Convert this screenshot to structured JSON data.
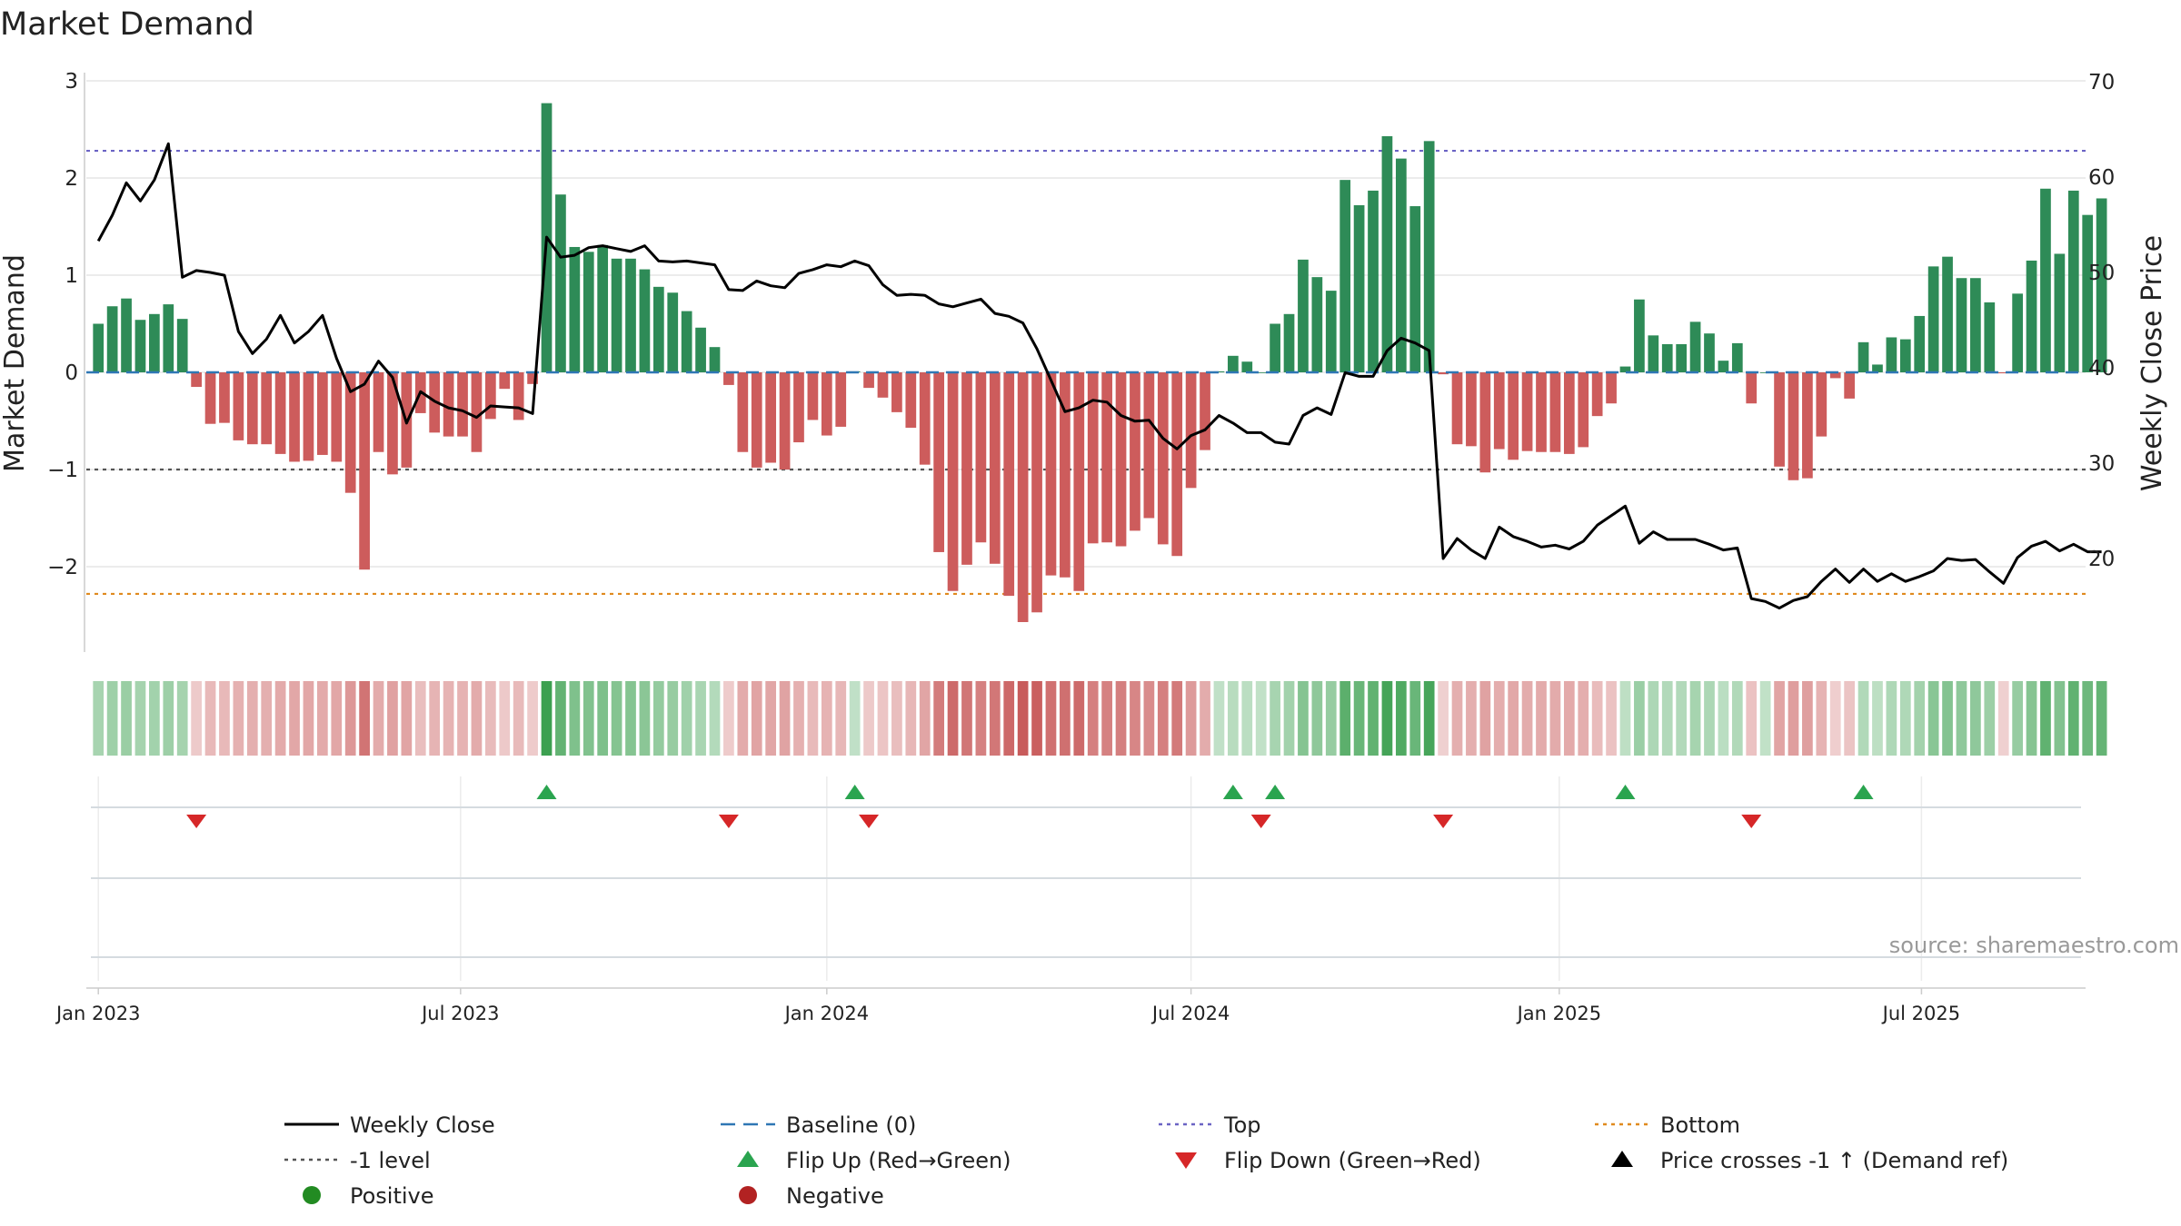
{
  "chart_data": {
    "type": "bar+line",
    "title": "Market Demand",
    "ylabel_left": "Market Demand",
    "ylabel_right": "Weekly Close Price",
    "source": "source: sharemaestro.com",
    "ylim_left": [
      -3,
      3
    ],
    "ylim_right": [
      10,
      70
    ],
    "yticks_left": [
      3,
      2,
      1,
      0,
      -1,
      -2
    ],
    "yticks_left_labels": [
      "3",
      "2",
      "1",
      "0",
      "−1",
      "−2"
    ],
    "yticks_right": [
      70,
      60,
      50,
      40,
      30,
      20
    ],
    "yticks_right_labels": [
      "70",
      "60",
      "50",
      "40",
      "30",
      "20"
    ],
    "x_start": "2023-01-02",
    "x_range_days": [
      -6,
      993
    ],
    "xticks": [
      {
        "day": 0,
        "label": "Jan 2023"
      },
      {
        "day": 181,
        "label": "Jul 2023"
      },
      {
        "day": 364,
        "label": "Jan 2024"
      },
      {
        "day": 546,
        "label": "Jul 2024"
      },
      {
        "day": 730,
        "label": "Jan 2025"
      },
      {
        "day": 911,
        "label": "Jul 2025"
      }
    ],
    "reference_lines": {
      "top": {
        "value": 2.28,
        "color": "#6b64c4"
      },
      "bottom": {
        "value": -2.28,
        "color": "#e08a1e"
      },
      "minus_one": {
        "value": -1,
        "color": "#555555"
      },
      "baseline": {
        "value": 0,
        "color": "#2f77b4"
      }
    },
    "colors": {
      "positive": "#2e8b57",
      "negative": "#cd5c5c",
      "price": "#000000",
      "flip_up": "#2aa44f",
      "flip_down": "#d62728"
    },
    "demand": [
      0.5,
      0.68,
      0.76,
      0.54,
      0.6,
      0.7,
      0.55,
      -0.15,
      -0.53,
      -0.52,
      -0.7,
      -0.74,
      -0.74,
      -0.84,
      -0.92,
      -0.91,
      -0.85,
      -0.92,
      -1.24,
      -2.03,
      -0.82,
      -1.05,
      -0.98,
      -0.42,
      -0.62,
      -0.66,
      -0.66,
      -0.82,
      -0.48,
      -0.17,
      -0.49,
      -0.12,
      2.77,
      1.83,
      1.29,
      1.24,
      1.31,
      1.17,
      1.17,
      1.06,
      0.88,
      0.82,
      0.63,
      0.46,
      0.26,
      -0.13,
      -0.82,
      -0.98,
      -0.93,
      -1.0,
      -0.72,
      -0.49,
      -0.65,
      -0.56,
      0.01,
      -0.16,
      -0.26,
      -0.41,
      -0.57,
      -0.95,
      -1.85,
      -2.25,
      -1.98,
      -1.75,
      -1.97,
      -2.3,
      -2.57,
      -2.47,
      -2.09,
      -2.11,
      -2.25,
      -1.76,
      -1.75,
      -1.79,
      -1.63,
      -1.5,
      -1.77,
      -1.89,
      -1.19,
      -0.8,
      0.01,
      0.17,
      0.11,
      0.0,
      0.5,
      0.6,
      1.16,
      0.98,
      0.84,
      1.98,
      1.72,
      1.87,
      2.43,
      2.2,
      1.71,
      2.38,
      -0.02,
      -0.74,
      -0.76,
      -1.03,
      -0.79,
      -0.9,
      -0.81,
      -0.82,
      -0.82,
      -0.84,
      -0.77,
      -0.45,
      -0.32,
      0.06,
      0.75,
      0.38,
      0.29,
      0.29,
      0.52,
      0.4,
      0.12,
      0.3,
      -0.32,
      0.0,
      -0.97,
      -1.11,
      -1.09,
      -0.66,
      -0.06,
      -0.27,
      0.31,
      0.08,
      0.36,
      0.34,
      0.58,
      1.09,
      1.19,
      0.97,
      0.97,
      0.72,
      -0.01,
      0.81,
      1.15,
      1.89,
      1.22,
      1.87,
      1.62,
      1.79
    ],
    "price": [
      53.3,
      56.0,
      59.4,
      57.5,
      59.7,
      63.5,
      49.5,
      50.2,
      50.0,
      49.7,
      43.8,
      41.5,
      43.0,
      45.5,
      42.6,
      43.8,
      45.5,
      41.0,
      37.5,
      38.3,
      40.7,
      39.0,
      34.2,
      37.5,
      36.5,
      35.8,
      35.5,
      34.8,
      36.0,
      35.9,
      35.8,
      35.2,
      53.7,
      51.6,
      51.8,
      52.6,
      52.8,
      52.5,
      52.2,
      52.8,
      51.2,
      51.1,
      51.2,
      51.0,
      50.8,
      48.2,
      48.1,
      49.1,
      48.6,
      48.4,
      49.9,
      50.3,
      50.8,
      50.6,
      51.2,
      50.7,
      48.7,
      47.6,
      47.7,
      47.6,
      46.7,
      46.4,
      46.8,
      47.2,
      45.7,
      45.4,
      44.7,
      42.0,
      38.7,
      35.4,
      35.8,
      36.6,
      36.4,
      35.0,
      34.4,
      34.5,
      32.6,
      31.5,
      32.9,
      33.5,
      35.0,
      34.2,
      33.2,
      33.2,
      32.2,
      32.0,
      35.0,
      35.8,
      35.1,
      39.5,
      39.1,
      39.1,
      41.8,
      43.1,
      42.6,
      41.8,
      20.0,
      22.1,
      20.9,
      20.0,
      23.3,
      22.3,
      21.8,
      21.2,
      21.4,
      21.0,
      21.8,
      23.5,
      24.5,
      25.5,
      21.6,
      22.8,
      22.0,
      22.0,
      22.0,
      21.5,
      20.9,
      21.1,
      15.8,
      15.5,
      14.8,
      15.6,
      16.0,
      17.6,
      18.9,
      17.5,
      18.9,
      17.6,
      18.4,
      17.6,
      18.1,
      18.7,
      20.0,
      19.8,
      19.9,
      18.6,
      17.4,
      20.1,
      21.3,
      21.8,
      20.8,
      21.5,
      20.7,
      20.7
    ],
    "flip_up_weeks": [
      32,
      54,
      81,
      84,
      109,
      126
    ],
    "flip_down_weeks": [
      7,
      45,
      55,
      83,
      96,
      118
    ],
    "legend": [
      {
        "label": "Weekly Close",
        "symbol": "line-solid",
        "color": "#000000"
      },
      {
        "label": "Baseline (0)",
        "symbol": "line-dash",
        "color": "#2f77b4"
      },
      {
        "label": "Top",
        "symbol": "line-dot",
        "color": "#6b64c4"
      },
      {
        "label": "Bottom",
        "symbol": "line-dot",
        "color": "#e08a1e"
      },
      {
        "label": "-1 level",
        "symbol": "line-dot",
        "color": "#555555"
      },
      {
        "label": "Flip Up (Red→Green)",
        "symbol": "triangle-up",
        "color": "#2aa44f"
      },
      {
        "label": "Flip Down (Green→Red)",
        "symbol": "triangle-down",
        "color": "#d62728"
      },
      {
        "label": "Price crosses -1 ↑ (Demand ref)",
        "symbol": "triangle-up",
        "color": "#000000"
      },
      {
        "label": "Positive",
        "symbol": "circle",
        "color": "#228b22"
      },
      {
        "label": "Negative",
        "symbol": "circle",
        "color": "#b22222"
      }
    ]
  }
}
